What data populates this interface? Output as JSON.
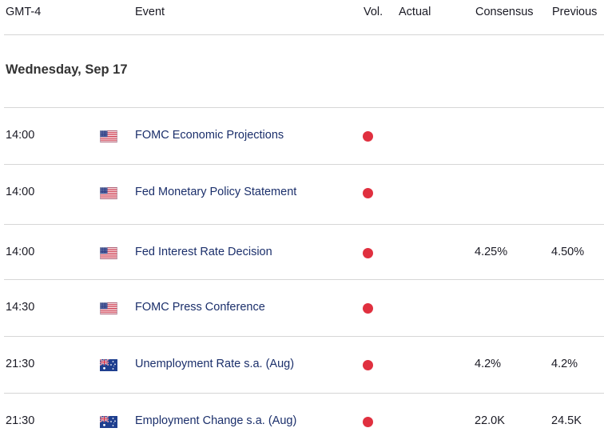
{
  "header": {
    "timezone": "GMT-4",
    "event": "Event",
    "vol": "Vol.",
    "actual": "Actual",
    "consensus": "Consensus",
    "previous": "Previous"
  },
  "date_heading": "Wednesday, Sep 17",
  "colors": {
    "volatility_high": "#e0303f",
    "event_text": "#1b2f6b",
    "divider": "#d6d6d6"
  },
  "events": [
    {
      "time": "14:00",
      "flag": "us-flag-icon",
      "name": "FOMC Economic Projections",
      "volatility": "high",
      "actual": "",
      "consensus": "",
      "previous": ""
    },
    {
      "time": "14:00",
      "flag": "us-flag-icon",
      "name": "Fed Monetary Policy Statement",
      "volatility": "high",
      "actual": "",
      "consensus": "",
      "previous": ""
    },
    {
      "time": "14:00",
      "flag": "us-flag-icon",
      "name": "Fed Interest Rate Decision",
      "volatility": "high",
      "actual": "",
      "consensus": "4.25%",
      "previous": "4.50%"
    },
    {
      "time": "14:30",
      "flag": "us-flag-icon",
      "name": "FOMC Press Conference",
      "volatility": "high",
      "actual": "",
      "consensus": "",
      "previous": ""
    },
    {
      "time": "21:30",
      "flag": "au-flag-icon",
      "name": "Unemployment Rate s.a. (Aug)",
      "volatility": "high",
      "actual": "",
      "consensus": "4.2%",
      "previous": "4.2%"
    },
    {
      "time": "21:30",
      "flag": "au-flag-icon",
      "name": "Employment Change s.a. (Aug)",
      "volatility": "high",
      "actual": "",
      "consensus": "22.0K",
      "previous": "24.5K"
    }
  ]
}
